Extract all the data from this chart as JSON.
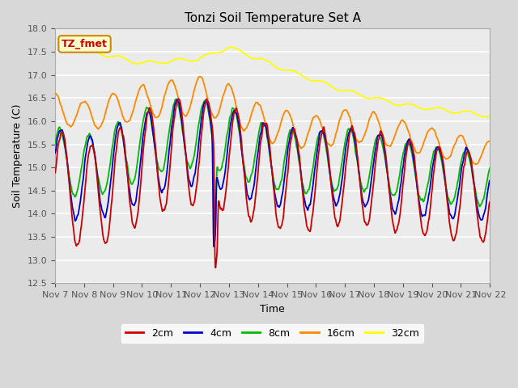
{
  "title": "Tonzi Soil Temperature Set A",
  "xlabel": "Time",
  "ylabel": "Soil Temperature (C)",
  "ylim": [
    12.5,
    18.0
  ],
  "yticks": [
    12.5,
    13.0,
    13.5,
    14.0,
    14.5,
    15.0,
    15.5,
    16.0,
    16.5,
    17.0,
    17.5,
    18.0
  ],
  "xtick_labels": [
    "Nov 7",
    "Nov 8",
    "Nov 9",
    "Nov 10",
    "Nov 11",
    "Nov 12",
    "Nov 13",
    "Nov 14",
    "Nov 15",
    "Nov 16",
    "Nov 17",
    "Nov 18",
    "Nov 19",
    "Nov 20",
    "Nov 21",
    "Nov 22"
  ],
  "colors": {
    "2cm": "#cc0000",
    "4cm": "#0000cc",
    "8cm": "#00bb00",
    "16cm": "#ff8800",
    "32cm": "#ffff00"
  },
  "label_box_color": "#ffffcc",
  "label_box_edge": "#cc8800",
  "label_text": "TZ_fmet",
  "label_text_color": "#cc0000",
  "fig_bg": "#d8d8d8",
  "ax_bg": "#ebebeb",
  "grid_color": "#ffffff",
  "legend_bg": "#ffffff"
}
